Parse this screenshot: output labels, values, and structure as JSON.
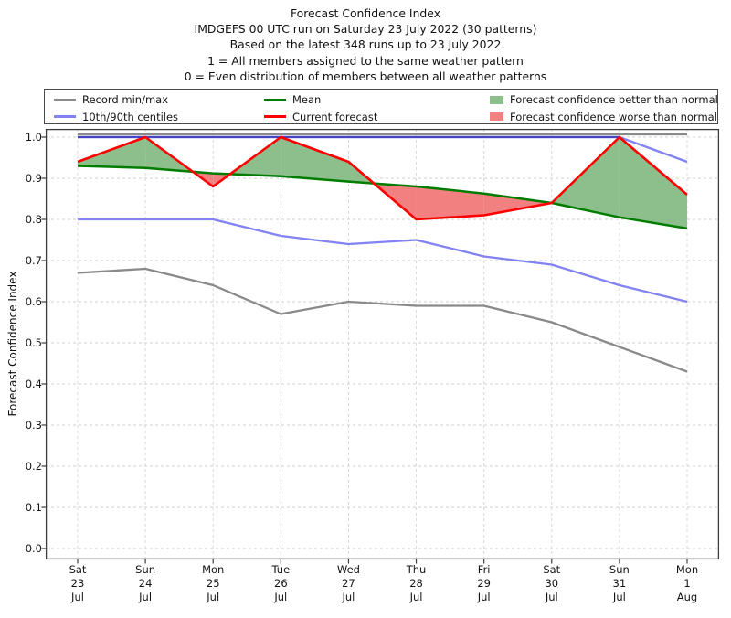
{
  "title": {
    "lines": [
      "Forecast Confidence Index",
      "IMDGEFS 00 UTC run on Saturday 23 July 2022 (30 patterns)",
      "Based on the latest 348 runs up to 23 July 2022",
      "1 = All members assigned to the same weather pattern",
      "0 = Even distribution of members between all weather patterns"
    ]
  },
  "legend": {
    "entries": [
      {
        "label": "Record min/max",
        "swatch": "line",
        "color": "#8a8a8a"
      },
      {
        "label": "10th/90th centiles",
        "swatch": "line",
        "color": "#8282f2"
      },
      {
        "label": "Mean",
        "swatch": "line",
        "color": "#007d00"
      },
      {
        "label": "Current forecast",
        "swatch": "line",
        "color": "#ff0000"
      },
      {
        "label": "Forecast confidence better than normal",
        "swatch": "patch",
        "color": "#8cbf8c"
      },
      {
        "label": "Forecast confidence worse than normal",
        "swatch": "patch",
        "color": "#f28080"
      }
    ]
  },
  "chart_data": {
    "type": "line",
    "title": "Forecast Confidence Index",
    "xlabel": "",
    "ylabel": "Forecast Confidence Index",
    "ylim": [
      0.0,
      1.0
    ],
    "grid": true,
    "legend_position": "top",
    "categories": [
      "Sat 23 Jul",
      "Sun 24 Jul",
      "Mon 25 Jul",
      "Tue 26 Jul",
      "Wed 27 Jul",
      "Thu 28 Jul",
      "Fri 29 Jul",
      "Sat 30 Jul",
      "Sun 31 Jul",
      "Mon 1 Aug"
    ],
    "x_tick_lines": [
      [
        "Sat",
        "23",
        "Jul"
      ],
      [
        "Sun",
        "24",
        "Jul"
      ],
      [
        "Mon",
        "25",
        "Jul"
      ],
      [
        "Tue",
        "26",
        "Jul"
      ],
      [
        "Wed",
        "27",
        "Jul"
      ],
      [
        "Thu",
        "28",
        "Jul"
      ],
      [
        "Fri",
        "29",
        "Jul"
      ],
      [
        "Sat",
        "30",
        "Jul"
      ],
      [
        "Sun",
        "31",
        "Jul"
      ],
      [
        "Mon",
        "1",
        "Aug"
      ]
    ],
    "yticks": [
      1.0,
      0.9,
      0.8,
      0.7,
      0.6,
      0.5,
      0.4,
      0.3,
      0.2,
      0.1,
      0.0
    ],
    "ytick_labels": [
      "1.0",
      "0.9",
      "0.8",
      "0.7",
      "0.6",
      "0.5",
      "0.4",
      "0.3",
      "0.2",
      "0.1",
      "0.0"
    ],
    "series": [
      {
        "key": "record_max",
        "name": "Record max",
        "color": "#8a8a8a",
        "values": [
          1.0,
          1.0,
          1.0,
          1.0,
          1.0,
          1.0,
          1.0,
          1.0,
          1.0,
          1.0
        ]
      },
      {
        "key": "p90",
        "name": "90th centile",
        "color": "#8282f2",
        "values": [
          1.0,
          1.0,
          1.0,
          1.0,
          1.0,
          1.0,
          1.0,
          1.0,
          1.0,
          0.94
        ]
      },
      {
        "key": "current",
        "name": "Current forecast",
        "color": "#ff0000",
        "values": [
          0.94,
          1.0,
          0.88,
          1.0,
          0.94,
          0.8,
          0.81,
          0.84,
          1.0,
          0.86
        ]
      },
      {
        "key": "mean",
        "name": "Mean",
        "color": "#007d00",
        "values": [
          0.93,
          0.925,
          0.912,
          0.905,
          0.892,
          0.88,
          0.863,
          0.84,
          0.805,
          0.778
        ]
      },
      {
        "key": "p10",
        "name": "10th centile",
        "color": "#8282f2",
        "values": [
          0.8,
          0.8,
          0.8,
          0.76,
          0.74,
          0.75,
          0.71,
          0.69,
          0.64,
          0.6
        ]
      },
      {
        "key": "record_min",
        "name": "Record min",
        "color": "#8a8a8a",
        "values": [
          0.67,
          0.68,
          0.64,
          0.57,
          0.6,
          0.59,
          0.59,
          0.55,
          0.49,
          0.43
        ]
      }
    ],
    "fills": {
      "better_color": "#8cbf8c",
      "worse_color": "#f28080",
      "description": "green fill where current forecast is above mean, red fill where current forecast is below mean"
    }
  }
}
